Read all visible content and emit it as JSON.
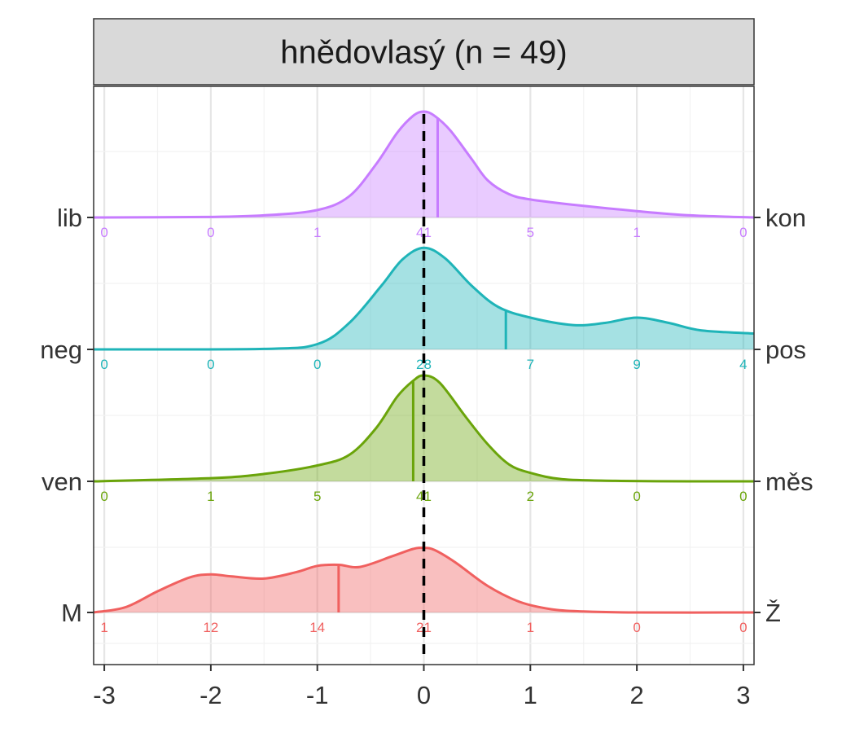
{
  "chart_data": {
    "type": "ridgeline-density",
    "title": "hnědovlasý (n = 49)",
    "xlabel": "",
    "ylabel": "",
    "xlim": [
      -3.1,
      3.1
    ],
    "x_ticks": [
      -3,
      -2,
      -1,
      0,
      1,
      2,
      3
    ],
    "x_tick_labels": [
      "-3",
      "-2",
      "-1",
      "0",
      "1",
      "2",
      "3"
    ],
    "reference_line_x": 0,
    "grid": true,
    "count_bins_x": [
      -3,
      -2,
      -1,
      0,
      1,
      2,
      3
    ],
    "series": [
      {
        "left_label": "lib",
        "right_label": "kon",
        "color": "#C77CFF",
        "mean": 0.13,
        "counts": [
          0,
          0,
          1,
          41,
          5,
          1,
          0
        ],
        "count_labels": [
          "0",
          "0",
          "1",
          "41",
          "5",
          "1",
          "0"
        ],
        "density": {
          "x": [
            -3.1,
            -2.0,
            -1.5,
            -1.0,
            -0.7,
            -0.45,
            -0.25,
            -0.1,
            0.0,
            0.1,
            0.25,
            0.45,
            0.6,
            0.8,
            1.0,
            1.4,
            2.0,
            2.5,
            3.1
          ],
          "y": [
            0.0,
            0.005,
            0.02,
            0.07,
            0.2,
            0.5,
            0.8,
            0.96,
            1.0,
            0.96,
            0.82,
            0.55,
            0.35,
            0.22,
            0.17,
            0.12,
            0.06,
            0.02,
            0.0
          ]
        }
      },
      {
        "left_label": "neg",
        "right_label": "pos",
        "color": "#1FB4B8",
        "mean": 0.77,
        "counts": [
          0,
          0,
          0,
          28,
          7,
          9,
          4
        ],
        "count_labels": [
          "0",
          "0",
          "0",
          "28",
          "7",
          "9",
          "4"
        ],
        "density": {
          "x": [
            -3.1,
            -1.5,
            -1.0,
            -0.7,
            -0.4,
            -0.2,
            0.0,
            0.2,
            0.45,
            0.7,
            1.0,
            1.4,
            1.7,
            2.0,
            2.3,
            2.6,
            3.1
          ],
          "y": [
            0.0,
            0.005,
            0.05,
            0.25,
            0.6,
            0.85,
            0.96,
            0.86,
            0.6,
            0.4,
            0.3,
            0.23,
            0.25,
            0.3,
            0.25,
            0.18,
            0.15
          ]
        }
      },
      {
        "left_label": "ven",
        "right_label": "měs",
        "color": "#6AA40A",
        "mean": -0.1,
        "counts": [
          0,
          1,
          5,
          41,
          2,
          0,
          0
        ],
        "count_labels": [
          "0",
          "1",
          "5",
          "41",
          "2",
          "0",
          "0"
        ],
        "density": {
          "x": [
            -3.1,
            -2.0,
            -1.5,
            -1.0,
            -0.7,
            -0.45,
            -0.25,
            -0.1,
            0.0,
            0.15,
            0.4,
            0.6,
            0.8,
            1.0,
            1.3,
            1.8,
            2.5,
            3.1
          ],
          "y": [
            0.0,
            0.03,
            0.07,
            0.15,
            0.25,
            0.5,
            0.8,
            0.95,
            1.0,
            0.93,
            0.6,
            0.35,
            0.16,
            0.08,
            0.02,
            0.005,
            0.0,
            0.0
          ]
        }
      },
      {
        "left_label": "M",
        "right_label": "Ž",
        "color": "#F0605F",
        "mean": -0.8,
        "counts": [
          1,
          12,
          14,
          21,
          1,
          0,
          0
        ],
        "count_labels": [
          "1",
          "12",
          "14",
          "21",
          "1",
          "0",
          "0"
        ],
        "density": {
          "x": [
            -3.1,
            -2.8,
            -2.5,
            -2.2,
            -2.0,
            -1.8,
            -1.5,
            -1.2,
            -1.0,
            -0.8,
            -0.6,
            -0.3,
            -0.1,
            0.0,
            0.1,
            0.3,
            0.6,
            0.9,
            1.2,
            1.5,
            2.0,
            3.1
          ],
          "y": [
            0.0,
            0.05,
            0.2,
            0.33,
            0.36,
            0.34,
            0.32,
            0.38,
            0.44,
            0.45,
            0.43,
            0.53,
            0.6,
            0.61,
            0.59,
            0.47,
            0.25,
            0.1,
            0.03,
            0.01,
            0.0,
            0.0
          ]
        }
      }
    ]
  }
}
